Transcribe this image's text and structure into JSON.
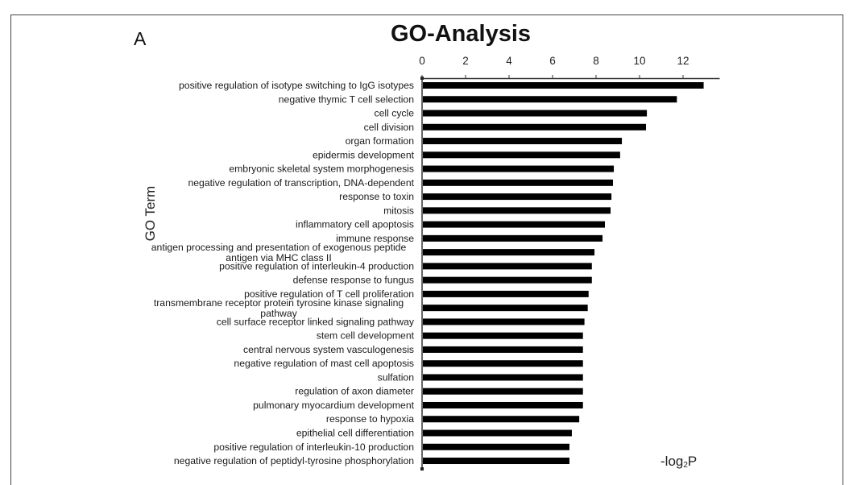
{
  "chart_data": {
    "type": "bar",
    "orientation": "horizontal",
    "panel_label": "A",
    "title": "GO-Analysis",
    "ylabel": "GO Term",
    "xlabel_main": "-log",
    "xlabel_sub": "2",
    "xlabel_tail": "P",
    "xlabel": "-log2P",
    "xlim": [
      0,
      13.5
    ],
    "xticks": [
      "0",
      "2",
      "4",
      "6",
      "8",
      "10",
      "12"
    ],
    "x_axis_position": "top",
    "grid": false,
    "bar_color": "#000000",
    "categories": [
      "positive regulation of isotype switching to IgG isotypes",
      "negative thymic T cell selection",
      "cell cycle",
      "cell division",
      "organ formation",
      "epidermis development",
      "embryonic skeletal system morphogenesis",
      "negative regulation of transcription, DNA-dependent",
      "response to toxin",
      "mitosis",
      "inflammatory cell apoptosis",
      "immune response",
      "antigen processing and presentation of exogenous peptide antigen via MHC class II",
      "positive regulation of interleukin-4 production",
      "defense response to fungus",
      "positive regulation of T cell proliferation",
      "transmembrane receptor protein tyrosine kinase signaling pathway",
      "cell surface receptor linked signaling pathway",
      "stem cell development",
      "central nervous system vasculogenesis",
      "negative regulation of mast cell apoptosis",
      "sulfation",
      "regulation of axon diameter",
      "pulmonary myocardium development",
      "response to hypoxia",
      "epithelial cell differentiation",
      "positive regulation of interleukin-10 production",
      "negative regulation of peptidyl-tyrosine phosphorylation"
    ],
    "values": [
      12.91,
      11.68,
      10.3,
      10.26,
      9.15,
      9.07,
      8.78,
      8.74,
      8.67,
      8.63,
      8.37,
      8.26,
      7.89,
      7.77,
      7.77,
      7.62,
      7.58,
      7.43,
      7.36,
      7.36,
      7.36,
      7.36,
      7.36,
      7.36,
      7.19,
      6.85,
      6.74,
      6.74
    ]
  }
}
